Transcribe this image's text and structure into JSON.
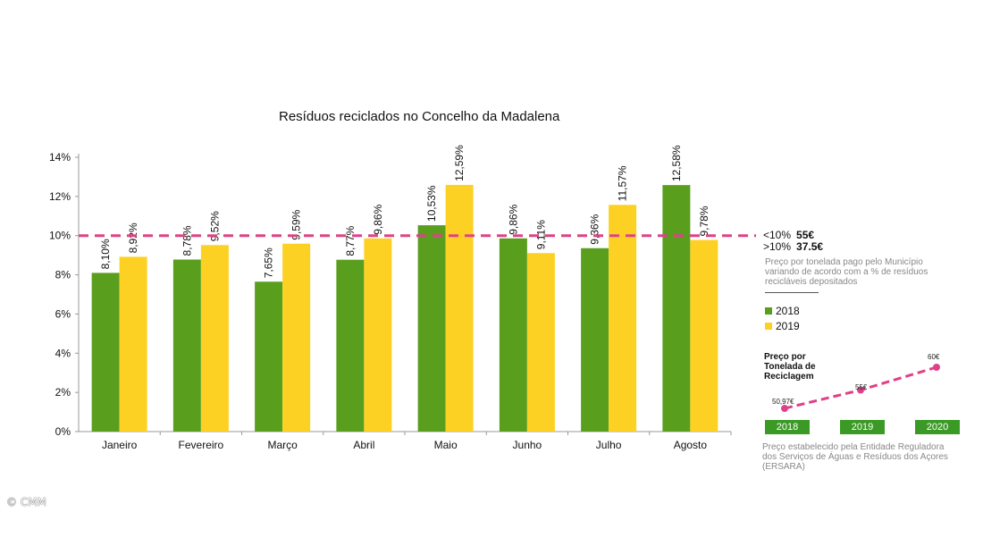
{
  "chart_data": {
    "type": "bar",
    "title": "Resíduos reciclados no Concelho da Madalena",
    "categories": [
      "Janeiro",
      "Fevereiro",
      "Março",
      "Abril",
      "Maio",
      "Junho",
      "Julho",
      "Agosto"
    ],
    "series": [
      {
        "name": "2018",
        "color": "#5a9e1e",
        "values": [
          8.1,
          8.78,
          7.65,
          8.77,
          10.53,
          9.86,
          9.36,
          12.58
        ],
        "labels": [
          "8,10%",
          "8,78%",
          "7,65%",
          "8,77%",
          "10,53%",
          "9,86%",
          "9,36%",
          "12,58%"
        ]
      },
      {
        "name": "2019",
        "color": "#fdd123",
        "values": [
          8.92,
          9.52,
          9.59,
          9.86,
          12.59,
          9.11,
          11.57,
          9.78
        ],
        "labels": [
          "8,92%",
          "9,52%",
          "9,59%",
          "9,86%",
          "12,59%",
          "9,11%",
          "11,57%",
          "9,78%"
        ]
      }
    ],
    "yticks": [
      0,
      2,
      4,
      6,
      8,
      10,
      12,
      14
    ],
    "ytick_labels": [
      "0%",
      "2%",
      "4%",
      "6%",
      "8%",
      "10%",
      "12%",
      "14%"
    ],
    "ylim": [
      0,
      14
    ],
    "threshold": {
      "value": 10,
      "color": "#e0408a",
      "style": "dashed"
    },
    "legend": [
      "2018",
      "2019"
    ]
  },
  "threshold_info": {
    "below_label": "<10%",
    "below_price": "55€",
    "above_label": ">10%",
    "above_price": "37.5€",
    "note_lines": [
      "Preço por tonelada pago pelo Município",
      "variando de acordo com a % de resíduos",
      "recicláveis depositados"
    ]
  },
  "price_chart": {
    "title": "Preço por Tonelada de Reciclagem",
    "years": [
      "2018",
      "2019",
      "2020"
    ],
    "values": [
      50.97,
      55,
      60
    ],
    "labels": [
      "50,97€",
      "55€",
      "60€"
    ],
    "line_color": "#e0408a",
    "box_color": "#3a9a25"
  },
  "source_note_lines": [
    "Preço estabelecido pela Entidade Reguladora",
    "dos Serviços de Águas e Resíduos dos Açores",
    "(ERSARA)"
  ],
  "credit": "© CMM"
}
